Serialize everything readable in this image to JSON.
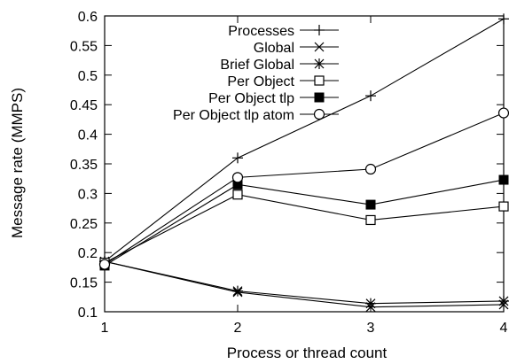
{
  "chart_data": {
    "type": "line",
    "xlabel": "Process or thread count",
    "ylabel": "Message rate (MMPS)",
    "xlim": [
      1,
      4
    ],
    "ylim": [
      0.1,
      0.6
    ],
    "x_ticks": [
      "1",
      "2",
      "3",
      "4"
    ],
    "y_ticks": [
      "0.1",
      "0.15",
      "0.2",
      "0.25",
      "0.3",
      "0.35",
      "0.4",
      "0.45",
      "0.5",
      "0.55",
      "0.6"
    ],
    "x": [
      1,
      2,
      3,
      4
    ],
    "grid": false,
    "legend_position": "top-left",
    "series": [
      {
        "name": "Processes",
        "marker": "plus",
        "values": [
          0.185,
          0.36,
          0.465,
          0.595
        ]
      },
      {
        "name": "Global",
        "marker": "cross",
        "values": [
          0.185,
          0.133,
          0.108,
          0.112
        ]
      },
      {
        "name": "Brief Global",
        "marker": "star",
        "values": [
          0.185,
          0.135,
          0.114,
          0.118
        ]
      },
      {
        "name": "Per Object",
        "marker": "open-square",
        "values": [
          0.183,
          0.298,
          0.255,
          0.278
        ]
      },
      {
        "name": "Per Object tlp",
        "marker": "filled-square",
        "values": [
          0.178,
          0.315,
          0.281,
          0.323
        ]
      },
      {
        "name": "Per Object tlp atom",
        "marker": "open-circle",
        "values": [
          0.18,
          0.327,
          0.341,
          0.436
        ]
      }
    ]
  }
}
